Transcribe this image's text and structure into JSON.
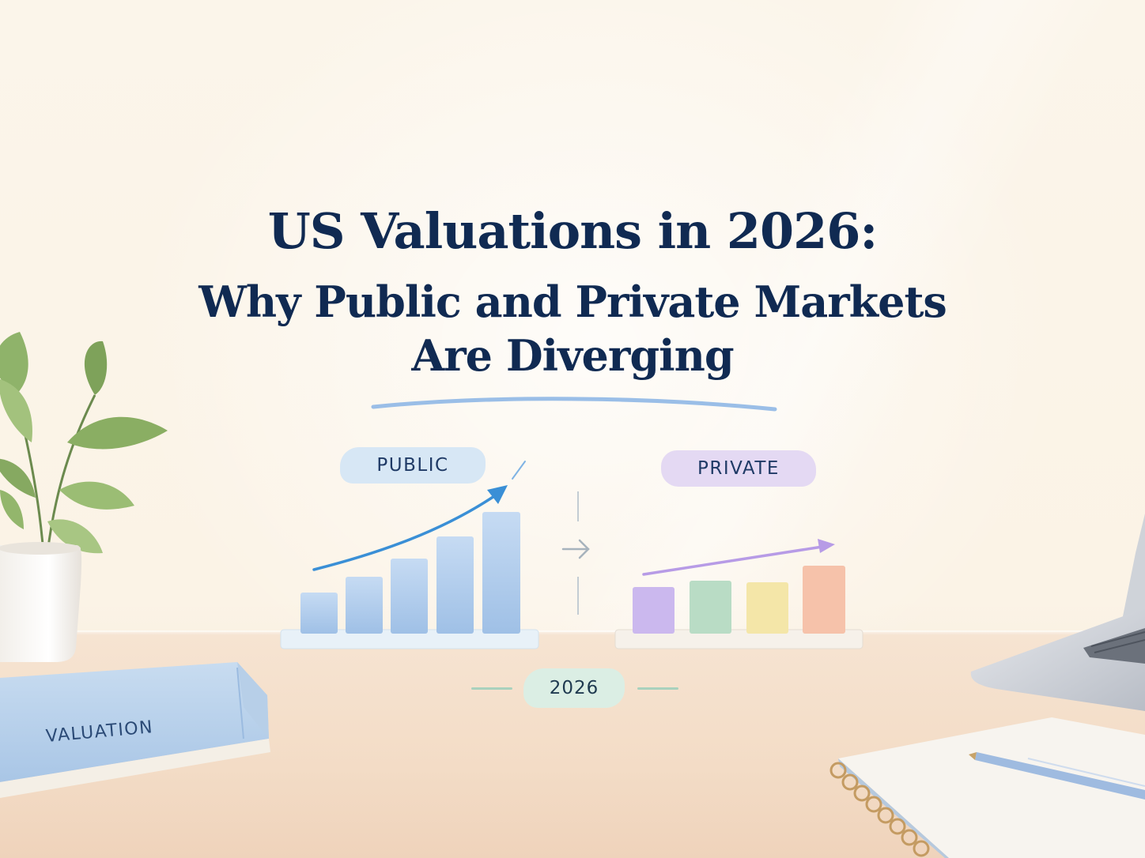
{
  "title": {
    "line1": "US Valuations in 2026:",
    "line2": "Why Public and Private Markets",
    "line3": "Are Diverging"
  },
  "labels": {
    "public": "PUBLIC",
    "private": "PRIVATE",
    "year": "2026"
  },
  "book": {
    "label": "VALUATION"
  },
  "colors": {
    "title": "#102a52",
    "public_bars": "#aac8ea",
    "public_arrow": "#3a8fd6",
    "private_arrow": "#b79be6",
    "private_bars": [
      "#cbb8ee",
      "#b9dcc5",
      "#f4e6a8",
      "#f6c2aa"
    ]
  },
  "icons": [
    "plant-icon",
    "arrow-right-icon",
    "laptop-icon",
    "notebook-icon",
    "pen-icon",
    "book-icon"
  ]
}
